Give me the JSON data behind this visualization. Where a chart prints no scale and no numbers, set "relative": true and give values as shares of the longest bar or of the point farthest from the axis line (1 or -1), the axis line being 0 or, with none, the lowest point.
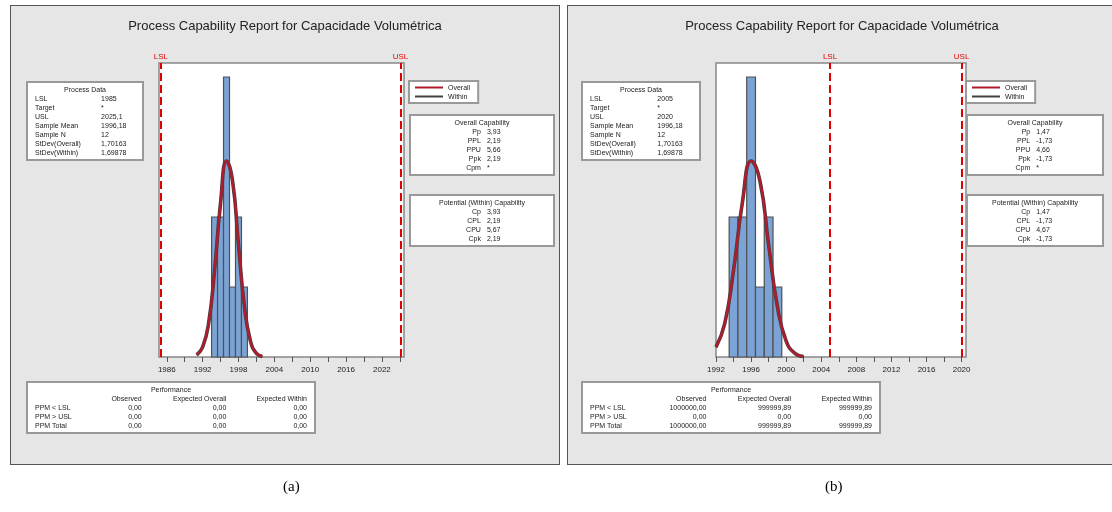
{
  "chart_data": [
    {
      "type": "histogram",
      "title": "Process Capability Report for Capacidade Volumétrica",
      "relative": true,
      "bins": [
        1993.5,
        1994.5,
        1995.5,
        1996.5,
        1997.5,
        1998.5,
        1999.5
      ],
      "values": [
        0.5,
        0.5,
        1,
        0.25,
        0.5,
        0.25
      ],
      "color": "#7ba3d6",
      "series": [
        {
          "name": "Overall",
          "type": "line",
          "color": "#b01c2e",
          "x": [
            1991,
            1992,
            1993,
            1994,
            1995,
            1996,
            1997,
            1998,
            1999,
            2000,
            2001,
            2002
          ],
          "values": [
            0.007,
            0.035,
            0.12,
            0.31,
            0.55,
            0.7,
            0.63,
            0.4,
            0.18,
            0.057,
            0.013,
            0.002
          ]
        },
        {
          "name": "Within",
          "type": "line",
          "color": "#404040",
          "x": [
            1991,
            1992,
            1993,
            1994,
            1995,
            1996,
            1997,
            1998,
            1999,
            2000,
            2001,
            2002
          ],
          "values": [
            0.007,
            0.035,
            0.12,
            0.31,
            0.55,
            0.7,
            0.63,
            0.4,
            0.18,
            0.057,
            0.013,
            0.002
          ]
        }
      ],
      "xlim": [
        1984.7,
        2025.7
      ],
      "xticks": [
        1986,
        {
          "value": 1989,
          "label": null
        },
        1992,
        {
          "value": 1995,
          "label": null
        },
        1998,
        {
          "value": 2001,
          "label": null
        },
        2004,
        {
          "value": 2007,
          "label": null
        },
        2010,
        {
          "value": 2013,
          "label": null
        },
        2016,
        {
          "value": 2019,
          "label": null
        },
        2022,
        {
          "value": 2025,
          "label": null
        }
      ],
      "ref_lines": [
        {
          "axis": "x",
          "value": 1985,
          "label": "LSL",
          "color": "#e00000",
          "line_style": "dashed"
        },
        {
          "axis": "x",
          "value": 2025.1,
          "label": "USL",
          "color": "#e00000",
          "line_style": "dashed"
        }
      ],
      "legend": "top right",
      "annotations": [
        "Process Data\nLSL\t1985\nTarget\t*\nUSL\t2025,1\nSample Mean\t1996,18\nSample N\t12\nStDev(Overall)\t1,70163\nStDev(Within)\t1,69878",
        "Overall Capability\nPp\t3,93\nPPL\t2,19\nPPU\t5,66\nPpk\t2,19\nCpm\t*",
        "Potential (Within) Capability\nCp\t3,93\nCPL\t2,19\nCPU\t5,67\nCpk\t2,19",
        "Performance\n\tObserved\tExpected Overall\tExpected Within\nPPM < LSL\t0,00\t0,00\t0,00\nPPM > USL\t0,00\t0,00\t0,00\nPPM Total\t0,00\t0,00\t0,00",
        "(a)"
      ]
    },
    {
      "type": "histogram",
      "title": "Process Capability Report for Capacidade Volumétrica",
      "relative": true,
      "bins": [
        1993.5,
        1994.5,
        1995.5,
        1996.5,
        1997.5,
        1998.5,
        1999.5
      ],
      "values": [
        0.5,
        0.5,
        1,
        0.25,
        0.5,
        0.25
      ],
      "color": "#7ba3d6",
      "series": [
        {
          "name": "Overall",
          "type": "line",
          "color": "#b01c2e",
          "x": [
            1992,
            1993,
            1994,
            1995,
            1996,
            1997,
            1998,
            1999,
            2000,
            2001,
            2002
          ],
          "values": [
            0.035,
            0.12,
            0.31,
            0.55,
            0.7,
            0.63,
            0.4,
            0.18,
            0.057,
            0.013,
            0.002
          ]
        },
        {
          "name": "Within",
          "type": "line",
          "color": "#404040",
          "x": [
            1992,
            1993,
            1994,
            1995,
            1996,
            1997,
            1998,
            1999,
            2000,
            2001,
            2002
          ],
          "values": [
            0.035,
            0.12,
            0.31,
            0.55,
            0.7,
            0.63,
            0.4,
            0.18,
            0.057,
            0.013,
            0.002
          ]
        }
      ],
      "xlim": [
        1992,
        2020.5
      ],
      "xticks": [
        1992,
        {
          "value": 1994,
          "label": null
        },
        1996,
        {
          "value": 1998,
          "label": null
        },
        2000,
        {
          "value": 2002,
          "label": null
        },
        2004,
        {
          "value": 2006,
          "label": null
        },
        2008,
        {
          "value": 2010,
          "label": null
        },
        2012,
        {
          "value": 2014,
          "label": null
        },
        2016,
        {
          "value": 2018,
          "label": null
        },
        2020
      ],
      "ref_lines": [
        {
          "axis": "x",
          "value": 2005,
          "label": "LSL",
          "color": "#e00000",
          "line_style": "dashed"
        },
        {
          "axis": "x",
          "value": 2020,
          "label": "USL",
          "color": "#e00000",
          "line_style": "dashed"
        }
      ],
      "legend": "top right",
      "annotations": [
        "Process Data\nLSL\t2005\nTarget\t*\nUSL\t2020\nSample Mean\t1996,18\nSample N\t12\nStDev(Overall)\t1,70163\nStDev(Within)\t1,69878",
        "Overall Capability\nPp\t1,47\nPPL\t-1,73\nPPU\t4,66\nPpk\t-1,73\nCpm\t*",
        "Potential (Within) Capability\nCp\t1,47\nCPL\t-1,73\nCPU\t4,67\nCpk\t-1,73",
        "Performance\n\tObserved\tExpected Overall\tExpected Within\nPPM < LSL\t1000000,00\t999999,89\t999999,89\nPPM > USL\t0,00\t0,00\t0,00\nPPM Total\t1000000,00\t999999,89\t999999,89",
        "(b)"
      ]
    }
  ]
}
